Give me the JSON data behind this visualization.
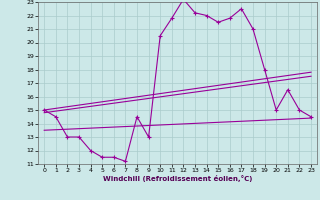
{
  "xlabel": "Windchill (Refroidissement éolien,°C)",
  "background_color": "#cce8e8",
  "grid_color": "#aacccc",
  "line_color": "#990099",
  "xlim": [
    -0.5,
    23.5
  ],
  "ylim": [
    11,
    23
  ],
  "xticks": [
    0,
    1,
    2,
    3,
    4,
    5,
    6,
    7,
    8,
    9,
    10,
    11,
    12,
    13,
    14,
    15,
    16,
    17,
    18,
    19,
    20,
    21,
    22,
    23
  ],
  "yticks": [
    11,
    12,
    13,
    14,
    15,
    16,
    17,
    18,
    19,
    20,
    21,
    22,
    23
  ],
  "line1_x": [
    0,
    1,
    2,
    3,
    4,
    5,
    6,
    7,
    8,
    9,
    10,
    11,
    12,
    13,
    14,
    15,
    16,
    17,
    18,
    19,
    20,
    21,
    22,
    23
  ],
  "line1_y": [
    15.0,
    14.5,
    13.0,
    13.0,
    12.0,
    11.5,
    11.5,
    11.2,
    14.5,
    13.0,
    20.5,
    21.8,
    23.2,
    22.2,
    22.0,
    21.5,
    21.8,
    22.5,
    21.0,
    18.0,
    15.0,
    16.5,
    15.0,
    14.5
  ],
  "line2_x": [
    0,
    23
  ],
  "line2_y": [
    15.0,
    17.8
  ],
  "line3_x": [
    0,
    23
  ],
  "line3_y": [
    14.8,
    17.5
  ],
  "line4_x": [
    0,
    23
  ],
  "line4_y": [
    13.5,
    14.4
  ]
}
